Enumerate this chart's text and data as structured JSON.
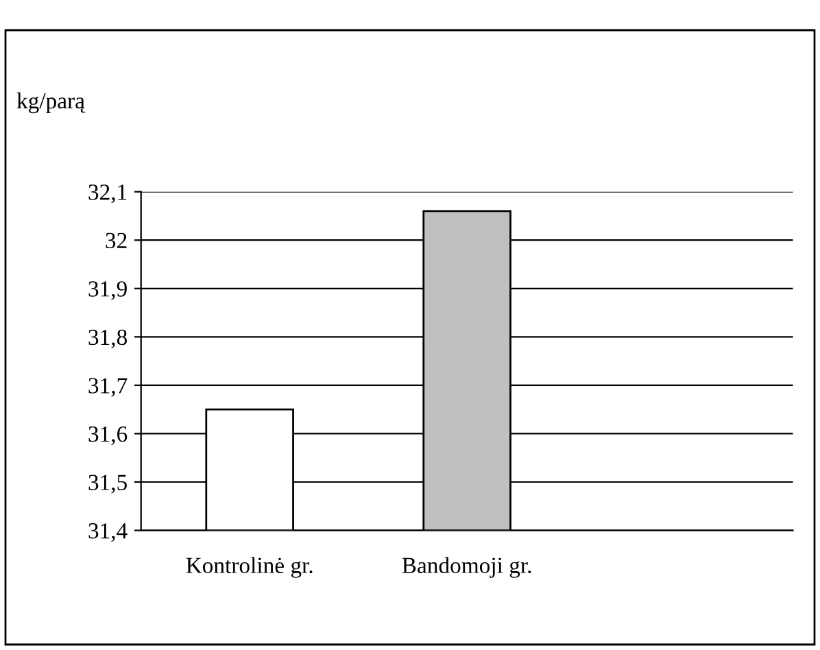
{
  "chart_data": {
    "type": "bar",
    "ylabel": "kg/parą",
    "categories": [
      "Kontrolinė gr.",
      "Bandomoji gr.",
      null
    ],
    "values": [
      31.65,
      32.06,
      null
    ],
    "colors": [
      "#ffffff",
      "#c0c0c0",
      "#ffffff"
    ],
    "ylim": [
      31.4,
      32.1
    ],
    "yticks": [
      {
        "value": 31.4,
        "label": "31,4"
      },
      {
        "value": 31.5,
        "label": "31,5"
      },
      {
        "value": 31.6,
        "label": "31,6"
      },
      {
        "value": 31.7,
        "label": "31,7"
      },
      {
        "value": 31.8,
        "label": "31,8"
      },
      {
        "value": 31.9,
        "label": "31,9"
      },
      32,
      {
        "value": 32.1,
        "label": "32,1"
      }
    ],
    "grid": "y",
    "legend": false
  }
}
